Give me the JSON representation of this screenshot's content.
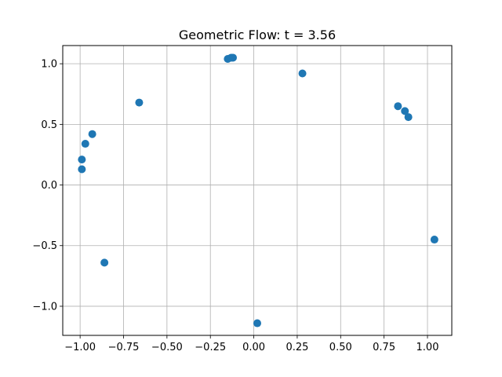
{
  "chart_data": {
    "type": "scatter",
    "title": "Geometric Flow: t = 3.56",
    "xlabel": "",
    "ylabel": "",
    "xlim": [
      -1.1,
      1.14
    ],
    "ylim": [
      -1.24,
      1.15
    ],
    "grid": true,
    "x_ticks": [
      -1.0,
      -0.75,
      -0.5,
      -0.25,
      0.0,
      0.25,
      0.5,
      0.75,
      1.0
    ],
    "x_tick_labels": [
      "−1.00",
      "−0.75",
      "−0.50",
      "−0.25",
      "0.00",
      "0.25",
      "0.50",
      "0.75",
      "1.00"
    ],
    "y_ticks": [
      -1.0,
      -0.5,
      0.0,
      0.5,
      1.0
    ],
    "y_tick_labels": [
      "−1.0",
      "−0.5",
      "0.0",
      "0.5",
      "1.0"
    ],
    "series": [
      {
        "color": "#1f77b4",
        "points": [
          {
            "x": -0.99,
            "y": 0.21
          },
          {
            "x": -0.99,
            "y": 0.13
          },
          {
            "x": -0.97,
            "y": 0.34
          },
          {
            "x": -0.93,
            "y": 0.42
          },
          {
            "x": -0.86,
            "y": -0.64
          },
          {
            "x": -0.66,
            "y": 0.68
          },
          {
            "x": -0.15,
            "y": 1.04
          },
          {
            "x": -0.13,
            "y": 1.05
          },
          {
            "x": -0.12,
            "y": 1.05
          },
          {
            "x": 0.02,
            "y": -1.14
          },
          {
            "x": 0.28,
            "y": 0.92
          },
          {
            "x": 0.83,
            "y": 0.65
          },
          {
            "x": 0.87,
            "y": 0.61
          },
          {
            "x": 0.89,
            "y": 0.56
          },
          {
            "x": 1.04,
            "y": -0.45
          }
        ]
      }
    ]
  }
}
